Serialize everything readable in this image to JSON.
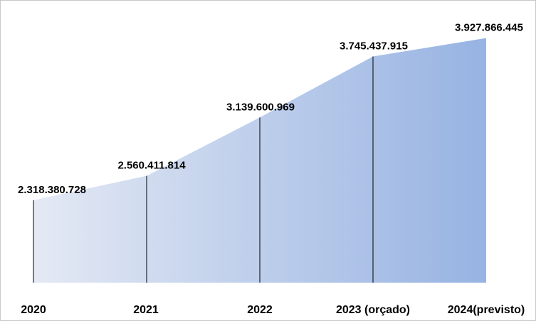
{
  "chart_data": {
    "type": "area",
    "categories": [
      "2020",
      "2021",
      "2022",
      "2023 (orçado)",
      "2024(previsto)"
    ],
    "values": [
      2318380728,
      2560411814,
      3139600969,
      3745437915,
      3927866445
    ],
    "value_labels": [
      "2.318.380.728",
      "2.560.411.814",
      "3.139.600.969",
      "3.745.437.915",
      "3.927.866.445"
    ],
    "title": "",
    "xlabel": "",
    "ylabel": "",
    "ylim": [
      0,
      4200000000
    ],
    "grid": false,
    "legend": "none",
    "colors": {
      "fill_start": "#e4e9f4",
      "fill_end": "#97b3e2",
      "drop_line": "#000000",
      "text": "#000000"
    }
  }
}
